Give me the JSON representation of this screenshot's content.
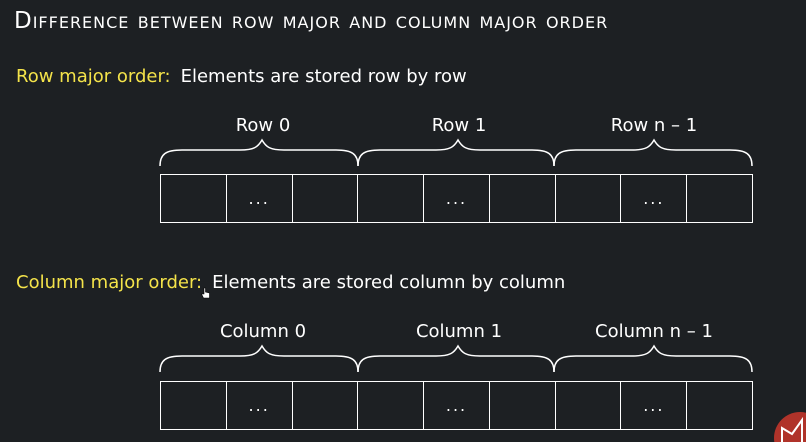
{
  "title": "Difference between row major and column major order",
  "row_major": {
    "label": "Row major order:",
    "description": "Elements are stored row by row",
    "groups": [
      "Row 0",
      "Row 1",
      "Row n – 1"
    ],
    "cells": [
      "",
      "...",
      "",
      "",
      "...",
      "",
      "",
      "...",
      ""
    ]
  },
  "column_major": {
    "label": "Column major order:",
    "description": "Elements are stored column by column",
    "groups": [
      "Column 0",
      "Column 1",
      "Column n – 1"
    ],
    "cells": [
      "",
      "...",
      "",
      "",
      "...",
      "",
      "",
      "...",
      ""
    ]
  },
  "colors": {
    "background": "#1d2023",
    "highlight": "#f4e34a",
    "text": "#ffffff",
    "logo": "#b0332a"
  },
  "icons": {
    "cursor": "hand-cursor-icon",
    "logo": "channel-logo-icon"
  }
}
